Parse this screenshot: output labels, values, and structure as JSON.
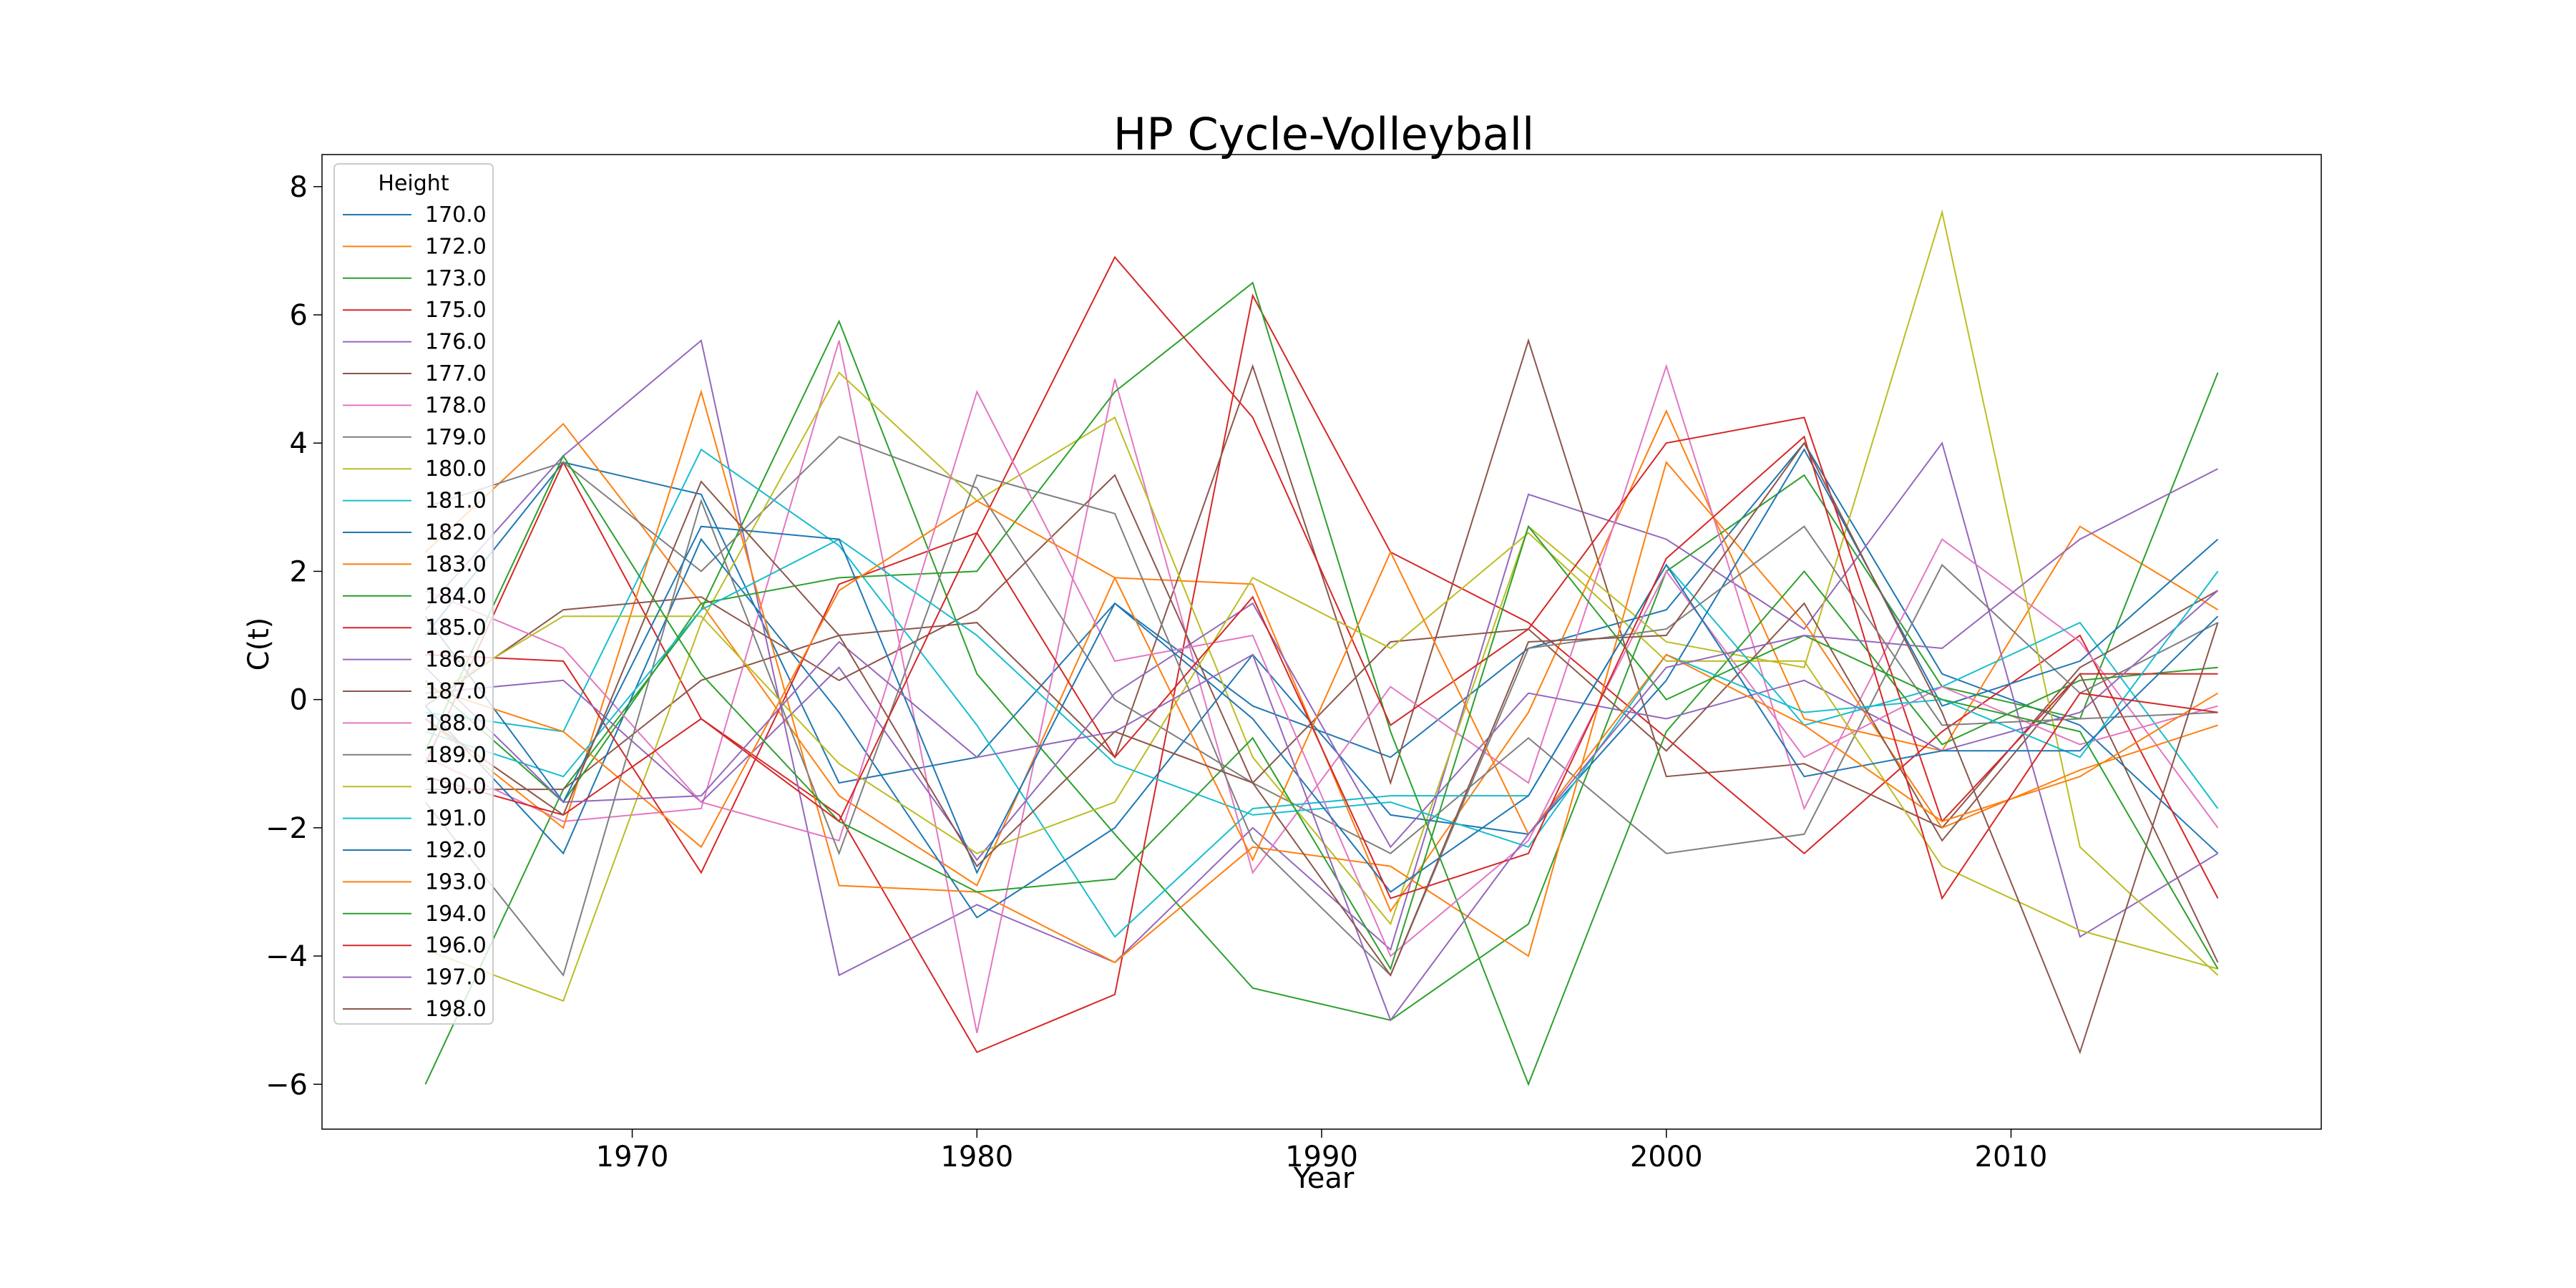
{
  "chart_data": {
    "type": "line",
    "title": "HP Cycle-Volleyball",
    "xlabel": "Year",
    "ylabel": "C(t)",
    "xlim": [
      1961,
      2019
    ],
    "ylim": [
      -6.7,
      8.5
    ],
    "xticks": [
      1970,
      1980,
      1990,
      2000,
      2010
    ],
    "yticks": [
      -6,
      -4,
      -2,
      0,
      2,
      4,
      6,
      8
    ],
    "grid": false,
    "legend": {
      "title": "Height",
      "placement": "top-left"
    },
    "x": [
      1964,
      1968,
      1972,
      1976,
      1980,
      1984,
      1988,
      1992,
      1996,
      2000,
      2004,
      2008,
      2012,
      2016
    ],
    "series": [
      {
        "name": "170.0",
        "color": "#1f77b4",
        "values": [
          1.0,
          3.7,
          3.2,
          -1.3,
          -0.9,
          1.5,
          -0.1,
          -0.9,
          0.8,
          1.4,
          4.0,
          0.4,
          -0.4,
          -2.4
        ]
      },
      {
        "name": "172.0",
        "color": "#ff7f0e",
        "values": [
          2.3,
          4.3,
          1.5,
          -1.5,
          -2.9,
          1.9,
          1.8,
          -3.3,
          -0.2,
          4.5,
          -0.3,
          -0.8,
          2.7,
          1.4
        ]
      },
      {
        "name": "173.0",
        "color": "#2ca02c",
        "values": [
          -6.0,
          -1.4,
          1.4,
          5.9,
          0.4,
          -2.1,
          -4.5,
          -5.0,
          -3.5,
          2.0,
          3.5,
          0.2,
          -0.3,
          5.1
        ]
      },
      {
        "name": "175.0",
        "color": "#d62728",
        "values": [
          -1.0,
          3.7,
          -0.3,
          -1.8,
          -5.5,
          -4.6,
          6.3,
          2.3,
          1.2,
          -0.6,
          -2.4,
          -0.5,
          1.0,
          -3.1
        ]
      },
      {
        "name": "176.0",
        "color": "#9467bd",
        "values": [
          1.4,
          3.8,
          5.6,
          -4.3,
          -3.2,
          -4.1,
          -2.0,
          -3.9,
          3.2,
          2.5,
          1.1,
          4.0,
          -3.7,
          -2.4
        ]
      },
      {
        "name": "177.0",
        "color": "#8c564b",
        "values": [
          -1.4,
          -1.4,
          0.3,
          1.0,
          1.2,
          -0.9,
          5.2,
          -1.3,
          5.6,
          -1.2,
          -1.0,
          -2.0,
          0.5,
          1.7
        ]
      },
      {
        "name": "178.0",
        "color": "#e377c2",
        "values": [
          -0.9,
          -1.9,
          -1.7,
          5.6,
          -5.2,
          5.0,
          -2.7,
          0.2,
          -1.3,
          5.2,
          -1.7,
          2.5,
          0.9,
          -2.0
        ]
      },
      {
        "name": "179.0",
        "color": "#7f7f7f",
        "values": [
          3.0,
          3.7,
          2.0,
          4.1,
          3.3,
          0.0,
          -1.3,
          -2.4,
          -0.6,
          -2.4,
          -2.1,
          2.1,
          0.1,
          1.2
        ]
      },
      {
        "name": "180.0",
        "color": "#bcbd22",
        "values": [
          -3.9,
          -4.7,
          1.2,
          5.1,
          3.1,
          4.4,
          -0.9,
          -3.5,
          2.7,
          0.9,
          0.5,
          7.6,
          -2.3,
          -4.3
        ]
      },
      {
        "name": "181.0",
        "color": "#17becf",
        "values": [
          -0.2,
          -0.5,
          3.9,
          2.4,
          -0.4,
          -3.7,
          -1.7,
          -1.5,
          -1.5,
          2.1,
          -0.4,
          0.2,
          1.2,
          -1.7
        ]
      },
      {
        "name": "182.0",
        "color": "#1f77b4",
        "values": [
          -0.1,
          -2.4,
          2.5,
          -0.2,
          -3.4,
          -2.0,
          0.7,
          -1.8,
          -2.1,
          0.3,
          3.9,
          -0.1,
          0.6,
          2.5
        ]
      },
      {
        "name": "183.0",
        "color": "#ff7f0e",
        "values": [
          -0.3,
          -2.0,
          4.8,
          -2.9,
          -3.0,
          -4.1,
          -2.3,
          -2.6,
          -4.0,
          3.7,
          1.2,
          -2.0,
          -1.1,
          -0.4
        ]
      },
      {
        "name": "184.0",
        "color": "#2ca02c",
        "values": [
          0.3,
          -1.6,
          1.5,
          1.9,
          2.0,
          4.8,
          6.5,
          -0.5,
          -6.0,
          -0.5,
          2.0,
          -0.7,
          0.3,
          0.5
        ]
      },
      {
        "name": "185.0",
        "color": "#d62728",
        "values": [
          0.7,
          0.6,
          -2.7,
          1.8,
          2.6,
          6.9,
          4.4,
          -0.4,
          1.1,
          4.0,
          4.4,
          -1.9,
          0.4,
          0.4
        ]
      },
      {
        "name": "186.0",
        "color": "#9467bd",
        "values": [
          0.1,
          0.3,
          -1.6,
          0.5,
          -2.5,
          0.1,
          1.5,
          -2.3,
          0.1,
          -0.3,
          0.3,
          -0.8,
          -0.2,
          1.7
        ]
      },
      {
        "name": "187.0",
        "color": "#8c564b",
        "values": [
          -0.1,
          1.4,
          1.6,
          0.3,
          1.4,
          3.5,
          -1.3,
          0.9,
          1.1,
          -0.8,
          1.5,
          -2.2,
          0.4,
          -4.1
        ]
      },
      {
        "name": "188.0",
        "color": "#e377c2",
        "values": [
          1.7,
          0.8,
          -1.6,
          -2.2,
          4.8,
          0.6,
          1.0,
          -4.0,
          -2.2,
          2.0,
          -0.9,
          0.2,
          -0.7,
          -0.1
        ]
      },
      {
        "name": "189.0",
        "color": "#7f7f7f",
        "values": [
          -1.6,
          -4.3,
          3.1,
          -2.4,
          3.5,
          2.9,
          -2.2,
          -4.3,
          0.8,
          1.1,
          2.7,
          -0.4,
          -0.3,
          -0.2
        ]
      },
      {
        "name": "190.0",
        "color": "#bcbd22",
        "values": [
          0.0,
          1.3,
          1.3,
          -1.0,
          -2.4,
          -1.6,
          1.9,
          0.8,
          2.6,
          0.6,
          0.6,
          -2.6,
          -3.6,
          -4.2
        ]
      },
      {
        "name": "191.0",
        "color": "#17becf",
        "values": [
          -0.5,
          -1.2,
          1.4,
          2.5,
          1.0,
          -1.0,
          -1.8,
          -1.6,
          -2.3,
          0.7,
          -0.2,
          0.0,
          -0.9,
          2.0
        ]
      },
      {
        "name": "192.0",
        "color": "#1f77b4",
        "values": [
          1.3,
          -1.6,
          2.7,
          2.5,
          -2.7,
          1.5,
          -0.3,
          -3.0,
          -1.5,
          2.1,
          -1.2,
          -0.8,
          -0.8,
          1.3
        ]
      },
      {
        "name": "193.0",
        "color": "#ff7f0e",
        "values": [
          0.2,
          -0.5,
          -2.3,
          1.7,
          3.1,
          1.9,
          -2.5,
          2.3,
          -2.1,
          0.7,
          -0.4,
          -1.9,
          -1.2,
          0.1
        ]
      },
      {
        "name": "194.0",
        "color": "#2ca02c",
        "values": [
          -0.8,
          3.8,
          0.4,
          -1.9,
          -3.0,
          -2.8,
          -0.6,
          -4.2,
          2.7,
          0.0,
          1.0,
          0.0,
          -0.5,
          -4.2
        ]
      },
      {
        "name": "196.0",
        "color": "#d62728",
        "values": [
          -1.2,
          -1.8,
          -0.3,
          -1.9,
          2.6,
          -0.9,
          1.6,
          -3.1,
          -2.4,
          2.2,
          4.1,
          -3.1,
          0.1,
          -0.2
        ]
      },
      {
        "name": "197.0",
        "color": "#9467bd",
        "values": [
          0.5,
          -1.6,
          -1.5,
          0.9,
          -0.9,
          -0.5,
          0.7,
          -5.0,
          -2.1,
          0.5,
          1.0,
          0.8,
          2.5,
          3.6
        ]
      },
      {
        "name": "198.0",
        "color": "#8c564b",
        "values": [
          -0.3,
          -1.8,
          3.4,
          1.0,
          -2.6,
          -0.5,
          -1.3,
          -4.3,
          0.9,
          1.0,
          4.0,
          -0.2,
          -5.5,
          1.2
        ]
      }
    ]
  }
}
